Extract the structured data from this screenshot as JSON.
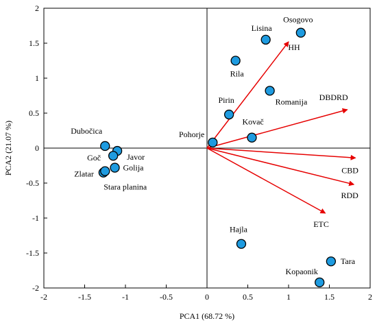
{
  "chart_data": {
    "type": "scatter",
    "title": "",
    "xlabel": "PCA1 (68.72 %)",
    "ylabel": "PCA2 (21.07 %)",
    "xlim": [
      -2,
      2
    ],
    "ylim": [
      -2,
      2
    ],
    "xticks": [
      -2,
      -1.5,
      -1,
      -0.5,
      0,
      0.5,
      1,
      1.5,
      2
    ],
    "yticks": [
      -2,
      -1.5,
      -1,
      -0.5,
      0,
      0.5,
      1,
      1.5,
      2
    ],
    "grid": false,
    "zero_lines": true,
    "point_color": "#1e9be0",
    "vector_color": "#e60000",
    "points": [
      {
        "name": "Osogovo",
        "x": 1.15,
        "y": 1.65
      },
      {
        "name": "Lisina",
        "x": 0.72,
        "y": 1.55
      },
      {
        "name": "Rila",
        "x": 0.35,
        "y": 1.25
      },
      {
        "name": "Romanija",
        "x": 0.77,
        "y": 0.82
      },
      {
        "name": "Pirin",
        "x": 0.27,
        "y": 0.48
      },
      {
        "name": "Kovač",
        "x": 0.55,
        "y": 0.15
      },
      {
        "name": "Pohorje",
        "x": 0.07,
        "y": 0.08
      },
      {
        "name": "Dubočica",
        "x": -1.25,
        "y": 0.03
      },
      {
        "name": "Javor",
        "x": -1.1,
        "y": -0.04
      },
      {
        "name": "Goč",
        "x": -1.15,
        "y": -0.11
      },
      {
        "name": "Golija",
        "x": -1.13,
        "y": -0.28
      },
      {
        "name": "Zlatar",
        "x": -1.27,
        "y": -0.35
      },
      {
        "name": "Stara planina",
        "x": -1.25,
        "y": -0.33
      },
      {
        "name": "Hajla",
        "x": 0.42,
        "y": -1.37
      },
      {
        "name": "Tara",
        "x": 1.52,
        "y": -1.62
      },
      {
        "name": "Kopaonik",
        "x": 1.38,
        "y": -1.92
      }
    ],
    "vectors": [
      {
        "name": "HH",
        "x": 1.0,
        "y": 1.52
      },
      {
        "name": "DBDRD",
        "x": 1.72,
        "y": 0.55
      },
      {
        "name": "CBD",
        "x": 1.82,
        "y": -0.14
      },
      {
        "name": "RDD",
        "x": 1.8,
        "y": -0.52
      },
      {
        "name": "ETC",
        "x": 1.45,
        "y": -0.93
      }
    ]
  }
}
